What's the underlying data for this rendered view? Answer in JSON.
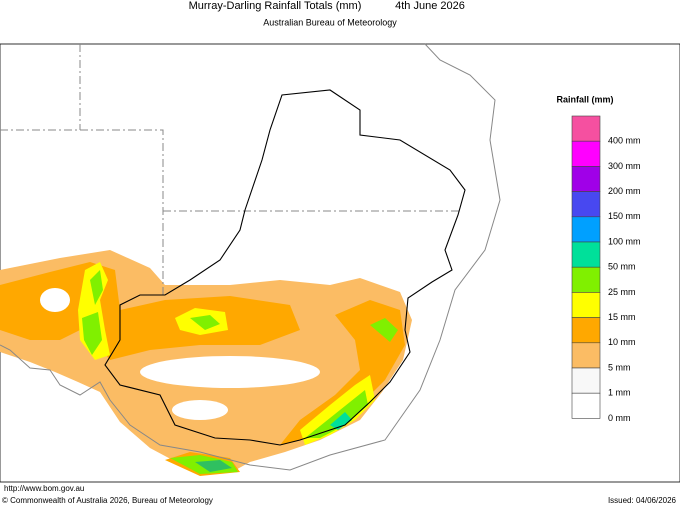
{
  "header": {
    "title": "Murray-Darling Rainfall Totals (mm)",
    "date": "4th June 2026",
    "subtitle": "Australian Bureau of Meteorology"
  },
  "legend": {
    "title": "Rainfall (mm)",
    "items": [
      {
        "label": "400 mm",
        "color": "#f550a0"
      },
      {
        "label": "300 mm",
        "color": "#ff00ff"
      },
      {
        "label": "200 mm",
        "color": "#a000e8"
      },
      {
        "label": "150 mm",
        "color": "#4848f0"
      },
      {
        "label": "100 mm",
        "color": "#00a0ff"
      },
      {
        "label": "50 mm",
        "color": "#00e09a"
      },
      {
        "label": "25 mm",
        "color": "#80f000"
      },
      {
        "label": "15 mm",
        "color": "#ffff00"
      },
      {
        "label": "10 mm",
        "color": "#ffa800"
      },
      {
        "label": "5 mm",
        "color": "#fbbc64"
      },
      {
        "label": "1 mm",
        "color": "#f8f8f8"
      },
      {
        "label": "0 mm",
        "color": "#ffffff"
      }
    ]
  },
  "footer": {
    "url": "http://www.bom.gov.au",
    "copyright": "© Commonwealth of Australia 2026, Bureau of Meteorology",
    "issued": "Issued: 04/06/2026"
  }
}
